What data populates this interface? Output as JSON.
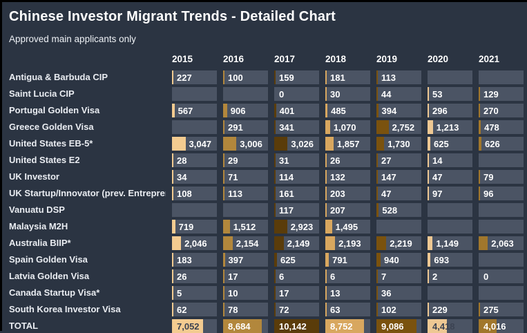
{
  "header": {
    "title": "Chinese Investor Migrant Trends - Detailed Chart",
    "subtitle": "Approved main applicants only"
  },
  "colors": {
    "page_bg": "#2b3442",
    "cell_bg": "#4b5464",
    "value_text": "#ffffff",
    "dark_text_on_light_bar": "#3c4352"
  },
  "chart_data": {
    "type": "table",
    "title": "Chinese Investor Migrant Trends - Detailed Chart",
    "subtitle": "Approved main applicants only",
    "columns": [
      {
        "label": "2015",
        "bar_color": "#f3cb90",
        "light_bar": true
      },
      {
        "label": "2016",
        "bar_color": "#b2873c",
        "light_bar": false
      },
      {
        "label": "2017",
        "bar_color": "#5a3c0a",
        "light_bar": false
      },
      {
        "label": "2018",
        "bar_color": "#d8a75f",
        "light_bar": false
      },
      {
        "label": "2019",
        "bar_color": "#7a520e",
        "light_bar": false
      },
      {
        "label": "2020",
        "bar_color": "#eec893",
        "light_bar": true
      },
      {
        "label": "2021",
        "bar_color": "#a1772c",
        "light_bar": false
      }
    ],
    "bar_scale_max": 10142,
    "series": [
      {
        "name": "Antigua & Barbuda CIP",
        "values": [
          227,
          100,
          159,
          181,
          113,
          null,
          null
        ]
      },
      {
        "name": "Saint Lucia CIP",
        "values": [
          null,
          null,
          0,
          30,
          44,
          53,
          129
        ]
      },
      {
        "name": "Portugal Golden Visa",
        "values": [
          567,
          906,
          401,
          485,
          394,
          296,
          270
        ]
      },
      {
        "name": "Greece Golden Visa",
        "values": [
          null,
          291,
          341,
          1070,
          2752,
          1213,
          478
        ]
      },
      {
        "name": "United States EB-5*",
        "values": [
          3047,
          3006,
          3026,
          1857,
          1730,
          625,
          626
        ]
      },
      {
        "name": "United States E2",
        "values": [
          28,
          29,
          31,
          26,
          27,
          14,
          null
        ]
      },
      {
        "name": "UK Investor",
        "values": [
          34,
          71,
          114,
          132,
          147,
          47,
          79
        ]
      },
      {
        "name": "UK Startup/Innovator (prev. Entrepreneur)",
        "values": [
          108,
          113,
          161,
          203,
          47,
          97,
          96
        ]
      },
      {
        "name": "Vanuatu DSP",
        "values": [
          null,
          null,
          117,
          207,
          528,
          null,
          null
        ]
      },
      {
        "name": "Malaysia M2H",
        "values": [
          719,
          1512,
          2923,
          1495,
          null,
          null,
          null
        ]
      },
      {
        "name": "Australia BIIP*",
        "values": [
          2046,
          2154,
          2149,
          2193,
          2219,
          1149,
          2063
        ]
      },
      {
        "name": "Spain Golden Visa",
        "values": [
          183,
          397,
          625,
          791,
          940,
          693,
          null
        ]
      },
      {
        "name": "Latvia Golden Visa",
        "values": [
          26,
          17,
          6,
          6,
          7,
          2,
          0
        ]
      },
      {
        "name": "Canada Startup Visa*",
        "values": [
          5,
          10,
          17,
          13,
          36,
          null,
          null
        ]
      },
      {
        "name": "South Korea Investor Visa",
        "values": [
          62,
          78,
          72,
          63,
          102,
          229,
          275
        ]
      }
    ],
    "total_row": {
      "name": "TOTAL",
      "values": [
        7052,
        8684,
        10142,
        8752,
        9086,
        4418,
        4016
      ]
    }
  }
}
